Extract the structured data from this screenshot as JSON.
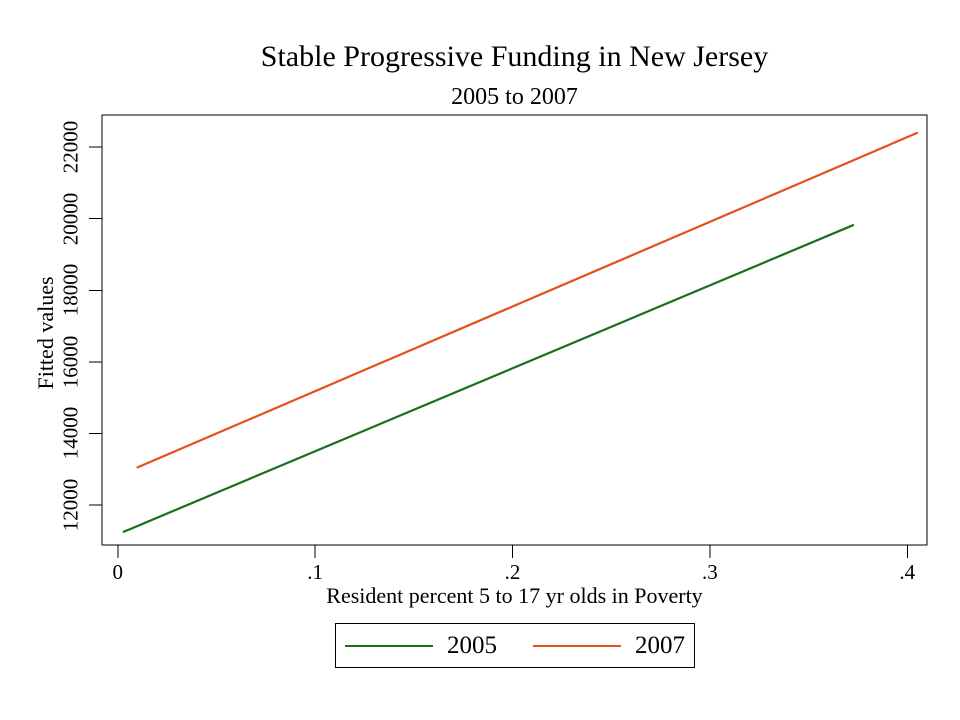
{
  "chart": {
    "title": "Stable Progressive Funding in New Jersey",
    "subtitle": "2005 to 2007",
    "x_axis": {
      "label": "Resident percent 5 to 17 yr olds in Poverty"
    },
    "y_axis": {
      "label": "Fitted values"
    },
    "legend": [
      {
        "label": "2005",
        "color": "#1a6e1e"
      },
      {
        "label": "2007",
        "color": "#e4501c"
      }
    ],
    "colors": {
      "axis": "#000000",
      "background": "#ffffff",
      "text": "#000000",
      "series_2005": "#1a6e1e",
      "series_2007": "#e4501c"
    }
  },
  "chart_data": {
    "type": "line",
    "title": "Stable Progressive Funding in New Jersey",
    "subtitle": "2005 to 2007",
    "xlabel": "Resident percent 5 to 17 yr olds in Poverty",
    "ylabel": "Fitted values",
    "xlim": [
      -0.008,
      0.41
    ],
    "ylim": [
      10880,
      22900
    ],
    "x_ticks": [
      0,
      0.1,
      0.2,
      0.3,
      0.4
    ],
    "x_tick_labels": [
      "0",
      ".1",
      ".2",
      ".3",
      ".4"
    ],
    "y_ticks": [
      12000,
      14000,
      16000,
      18000,
      20000,
      22000
    ],
    "y_tick_labels": [
      "12000",
      "14000",
      "16000",
      "18000",
      "20000",
      "22000"
    ],
    "grid": false,
    "legend_position": "bottom-center",
    "series": [
      {
        "name": "2005",
        "color": "#1a6e1e",
        "x": [
          0.003,
          0.3725
        ],
        "y": [
          11250,
          19820
        ]
      },
      {
        "name": "2007",
        "color": "#e4501c",
        "x": [
          0.01,
          0.405
        ],
        "y": [
          13050,
          22400
        ]
      }
    ]
  }
}
